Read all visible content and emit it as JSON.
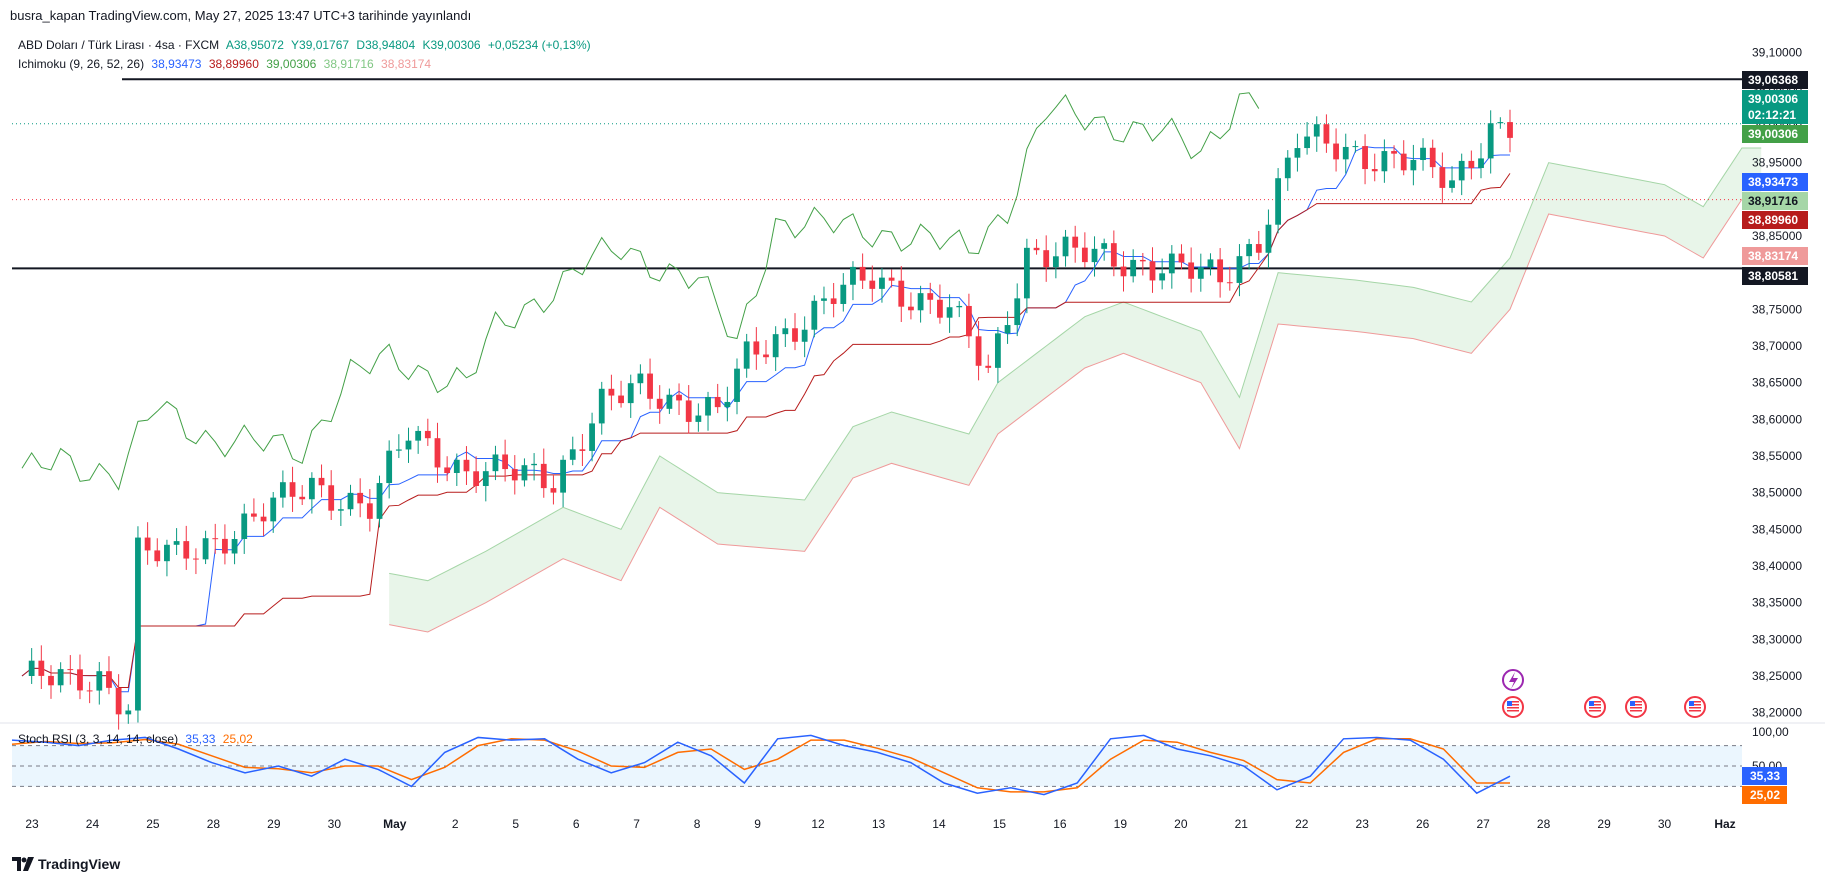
{
  "header": {
    "published": "busra_kapan TradingView.com, May 27, 2025 13:47 UTC+3 tarihinde yayınlandı"
  },
  "legend": {
    "symbol": "ABD Doları / Türk Lirası · 4sa · FXCM",
    "open": "A38,95072",
    "high": "Y39,01767",
    "low": "D38,94804",
    "close": "K39,00306",
    "change": "+0,05234 (+0,13%)",
    "ichimoku_label": "Ichimoku (9, 26, 52, 26)",
    "ichimoku_values": [
      "38,93473",
      "38,89960",
      "39,00306",
      "38,91716",
      "38,83174"
    ]
  },
  "colors": {
    "up": "#089981",
    "down": "#f23645",
    "conversion": "#2962ff",
    "base": "#b71c1c",
    "lagging": "#43a047",
    "lead_a": "#a5d6a7",
    "lead_b": "#ef9a9a",
    "stoch_k": "#2962ff",
    "stoch_d": "#ff6d00"
  },
  "stoch": {
    "label": "Stoch RSI (3, 3, 14, 14, close)",
    "k_value": "35,33",
    "d_value": "25,02",
    "axis_ticks": [
      "100,00",
      "50,00"
    ]
  },
  "price_tags": [
    {
      "label": "39,06368",
      "bg": "#131722",
      "fg": "#ffffff"
    },
    {
      "label": "39,00306",
      "bg": "#089981",
      "fg": "#ffffff"
    },
    {
      "label": "02:12:21",
      "bg": "#089981",
      "fg": "#ffffff"
    },
    {
      "label": "39,00306",
      "bg": "#43a047",
      "fg": "#ffffff"
    },
    {
      "label": "38,93473",
      "bg": "#2962ff",
      "fg": "#ffffff"
    },
    {
      "label": "38,91716",
      "bg": "#a5d6a7",
      "fg": "#131722"
    },
    {
      "label": "38,89960",
      "bg": "#b71c1c",
      "fg": "#ffffff"
    },
    {
      "label": "38,83174",
      "bg": "#ef9a9a",
      "fg": "#ffffff"
    },
    {
      "label": "38,80581",
      "bg": "#131722",
      "fg": "#ffffff"
    }
  ],
  "footer": {
    "brand": "TradingView"
  },
  "chart_data": {
    "type": "candlestick",
    "symbol": "USD/TRY",
    "timeframe": "4sa",
    "ylim": [
      38.19,
      39.12
    ],
    "y_ticks": [
      38.2,
      38.25,
      38.3,
      38.35,
      38.4,
      38.45,
      38.5,
      38.55,
      38.6,
      38.65,
      38.7,
      38.75,
      38.8,
      38.85,
      38.9,
      38.95,
      39.0,
      39.05,
      39.1
    ],
    "y_tick_labels": [
      "38,20000",
      "38,25000",
      "38,30000",
      "38,35000",
      "38,40000",
      "38,45000",
      "38,50000",
      "38,55000",
      "38,60000",
      "38,65000",
      "38,70000",
      "38,75000",
      "38,80000",
      "38,85000",
      "38,90000",
      "38,95000",
      "39,00000",
      "39,05000",
      "39,10000"
    ],
    "x_labels": [
      "23",
      "24",
      "25",
      "28",
      "29",
      "30",
      "May",
      "2",
      "5",
      "6",
      "7",
      "8",
      "9",
      "12",
      "13",
      "14",
      "15",
      "16",
      "19",
      "20",
      "21",
      "22",
      "23",
      "26",
      "27",
      "28",
      "29",
      "30",
      "Haz"
    ],
    "horizontal_lines": [
      39.06368,
      38.80581
    ],
    "candle_anchors": [
      [
        0,
        38.25
      ],
      [
        5,
        38.24
      ],
      [
        8,
        38.25
      ],
      [
        11,
        38.21
      ],
      [
        12,
        38.42
      ],
      [
        16,
        38.41
      ],
      [
        22,
        38.45
      ],
      [
        30,
        38.51
      ],
      [
        36,
        38.48
      ],
      [
        40,
        38.58
      ],
      [
        46,
        38.53
      ],
      [
        55,
        38.52
      ],
      [
        60,
        38.62
      ],
      [
        64,
        38.64
      ],
      [
        72,
        38.61
      ],
      [
        75,
        38.68
      ],
      [
        84,
        38.77
      ],
      [
        88,
        38.79
      ],
      [
        96,
        38.75
      ],
      [
        100,
        38.66
      ],
      [
        104,
        38.83
      ],
      [
        112,
        38.82
      ],
      [
        118,
        38.81
      ],
      [
        124,
        38.79
      ],
      [
        128,
        38.85
      ],
      [
        132,
        38.98
      ],
      [
        140,
        38.96
      ],
      [
        144,
        38.95
      ],
      [
        148,
        38.92
      ],
      [
        152,
        39.0
      ]
    ],
    "stoch_rsi": {
      "k": [
        88,
        85,
        80,
        88,
        92,
        75,
        55,
        40,
        50,
        35,
        60,
        45,
        20,
        70,
        92,
        88,
        90,
        60,
        40,
        55,
        85,
        65,
        25,
        90,
        95,
        80,
        70,
        55,
        25,
        10,
        18,
        8,
        25,
        90,
        95,
        75,
        65,
        50,
        15,
        35,
        90,
        92,
        88,
        60,
        10,
        35
      ],
      "d": [
        82,
        86,
        83,
        84,
        89,
        82,
        65,
        48,
        46,
        40,
        50,
        50,
        30,
        48,
        80,
        90,
        88,
        72,
        50,
        48,
        70,
        75,
        45,
        60,
        88,
        88,
        76,
        62,
        40,
        18,
        12,
        12,
        18,
        60,
        88,
        85,
        70,
        58,
        30,
        25,
        70,
        90,
        90,
        75,
        25,
        25
      ],
      "ylim": [
        0,
        100
      ],
      "bands": [
        20,
        50,
        80
      ]
    }
  }
}
